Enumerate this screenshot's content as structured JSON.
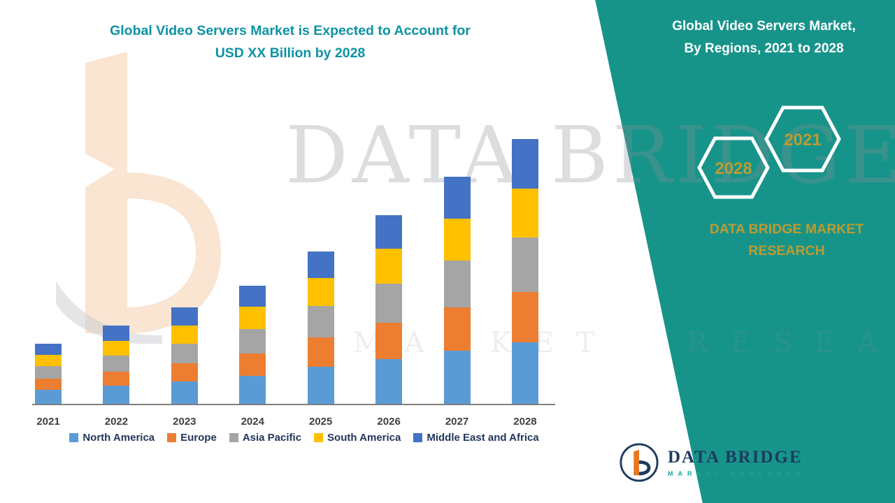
{
  "header": {
    "title_line1": "Global Video Servers Market is Expected to Account for",
    "title_line2": "USD XX Billion by 2028"
  },
  "side_panel": {
    "bg_color": "#17948A",
    "title_line1": "Global Video Servers Market,",
    "title_line2": "By Regions, 2021 to 2028",
    "hexagon_left_label": "2028",
    "hexagon_right_label": "2021",
    "accent_text_color": "#BD9B30",
    "brand_line1": "DATA BRIDGE MARKET",
    "brand_line2": "RESEARCH"
  },
  "watermark": {
    "line1": "DATA BRIDGE",
    "line2": "MARKET RESEARCH"
  },
  "chart_data": {
    "type": "bar",
    "stacked": true,
    "title": "Global Video Servers Market is Expected to Account for USD XX Billion by 2028",
    "xlabel": "",
    "ylabel": "",
    "grid": false,
    "legend_position": "bottom",
    "value_note": "No value axis shown; segment values are relative estimates read from bar heights (USD XX Billion undisclosed)",
    "categories": [
      "2021",
      "2022",
      "2023",
      "2024",
      "2025",
      "2026",
      "2027",
      "2028"
    ],
    "series": [
      {
        "name": "North America",
        "color": "#5B9BD5",
        "values": [
          2.2,
          2.8,
          3.4,
          4.2,
          5.5,
          6.6,
          7.8,
          9.0
        ]
      },
      {
        "name": "Europe",
        "color": "#ED7D31",
        "values": [
          1.6,
          2.0,
          2.6,
          3.2,
          4.2,
          5.2,
          6.2,
          7.2
        ]
      },
      {
        "name": "Asia Pacific",
        "color": "#A5A5A5",
        "values": [
          1.8,
          2.3,
          2.8,
          3.5,
          4.5,
          5.6,
          6.7,
          7.8
        ]
      },
      {
        "name": "South America",
        "color": "#FFC000",
        "values": [
          1.6,
          2.1,
          2.6,
          3.2,
          4.0,
          5.0,
          6.0,
          7.0
        ]
      },
      {
        "name": "Middle East and Africa",
        "color": "#4472C4",
        "values": [
          1.6,
          2.2,
          2.6,
          3.0,
          3.8,
          4.8,
          6.0,
          7.1
        ]
      }
    ]
  },
  "footer_logo": {
    "title": "DATA BRIDGE",
    "subtitle": "MARKET RESEARCH"
  }
}
